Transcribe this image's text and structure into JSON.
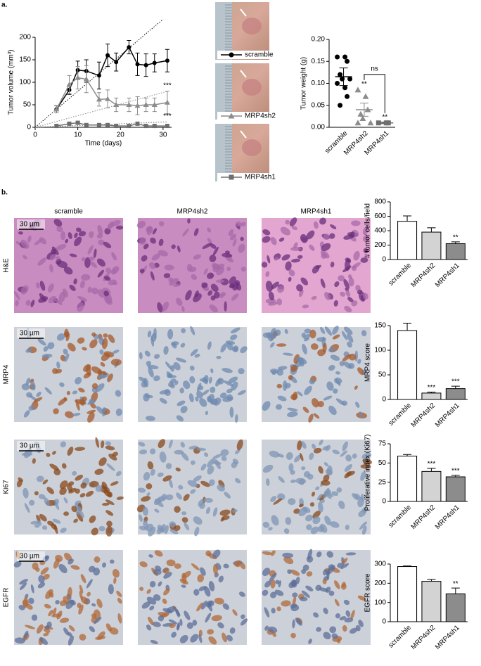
{
  "panel_labels": [
    "a.",
    "b."
  ],
  "histology": {
    "columns": [
      "scramble",
      "MRP4sh2",
      "MRP4sh1"
    ],
    "rows": [
      "H&E",
      "MRP4",
      "Ki67",
      "EGFR"
    ],
    "scale_bar": "30 µm"
  },
  "chart_data": [
    {
      "type": "line",
      "ylabel": "Tumor volume (mm³)",
      "xlabel": "Time (days)",
      "x": [
        5,
        8,
        10,
        12,
        15,
        17,
        19,
        22,
        24,
        26,
        28,
        31
      ],
      "xlim": [
        0,
        32
      ],
      "xticks": [
        0,
        10,
        20,
        30
      ],
      "ylim": [
        0,
        200
      ],
      "yticks": [
        0,
        50,
        100,
        150,
        200
      ],
      "series": [
        {
          "name": "scramble",
          "color": "#000000",
          "marker": "circle",
          "values": [
            40,
            83,
            127,
            125,
            115,
            160,
            145,
            178,
            140,
            138,
            143,
            148
          ],
          "errors": [
            8,
            10,
            20,
            25,
            30,
            25,
            20,
            15,
            25,
            25,
            20,
            25
          ],
          "trend_x": [
            0,
            30
          ],
          "trend": [
            0,
            240
          ],
          "annotation": null
        },
        {
          "name": "MRP4sh2",
          "color": "#8c8c8c",
          "marker": "triangle",
          "values": [
            40,
            95,
            110,
            107,
            62,
            63,
            50,
            50,
            48,
            50,
            50,
            55
          ],
          "errors": [
            8,
            20,
            25,
            30,
            15,
            20,
            15,
            15,
            20,
            15,
            15,
            25
          ],
          "trend_x": [
            0,
            31
          ],
          "trend": [
            0,
            80
          ],
          "annotation": "***"
        },
        {
          "name": "MRP4sh1",
          "color": "#6e6e6e",
          "marker": "square",
          "values": [
            3,
            8,
            10,
            5,
            5,
            5,
            3,
            3,
            8,
            3,
            3,
            3
          ],
          "errors": [
            2,
            3,
            3,
            2,
            2,
            2,
            2,
            2,
            3,
            2,
            2,
            2
          ],
          "trend_x": [
            0,
            31
          ],
          "trend": [
            0,
            12
          ],
          "annotation": "***"
        }
      ]
    },
    {
      "type": "scatter",
      "ylabel": "Tumor weight (g)",
      "categories": [
        "scramble",
        "MRP4sh2",
        "MRP4sh1"
      ],
      "ylim": [
        0,
        0.2
      ],
      "yticks": [
        {
          "value": 0,
          "label": "0.00"
        },
        {
          "value": 0.05,
          "label": "0.05"
        },
        {
          "value": 0.1,
          "label": "0.10"
        },
        {
          "value": 0.15,
          "label": "0.15"
        },
        {
          "value": 0.2,
          "label": "0.20"
        }
      ],
      "points": [
        [
          0.16,
          0.16,
          0.15,
          0.12,
          0.11,
          0.11,
          0.1,
          0.09,
          0.07,
          0.05
        ],
        [
          0.085,
          0.07,
          0.04,
          0.03,
          0.02,
          0.01,
          0.01
        ],
        [
          0.01,
          0.01,
          0.01
        ]
      ],
      "means": [
        0.115,
        0.04,
        0.01
      ],
      "errors": [
        0.02,
        0.015,
        0.002
      ],
      "colors": [
        "#000000",
        "#8c8c8c",
        "#6e6e6e"
      ],
      "markers": [
        "circle",
        "triangle",
        "square"
      ],
      "value_annotations": [
        null,
        "**",
        "**"
      ],
      "bracket": {
        "label": "ns",
        "categories": [
          1,
          2
        ]
      }
    },
    {
      "type": "bar",
      "ylabel": "# tumor cells/field",
      "categories": [
        "scramble",
        "MRP4sh2",
        "MRP4sh1"
      ],
      "values": [
        530,
        380,
        220
      ],
      "errors": [
        75,
        60,
        25
      ],
      "colors": [
        "#ffffff",
        "#d3d3d3",
        "#8c8c8c"
      ],
      "ylim": [
        0,
        800
      ],
      "yticks": [
        0,
        200,
        400,
        600,
        800
      ],
      "value_annotations": [
        null,
        null,
        "**"
      ]
    },
    {
      "type": "bar",
      "ylabel": "MRP4 score",
      "categories": [
        "scramble",
        "MRP4sh2",
        "MRP4sh1"
      ],
      "values": [
        140,
        13,
        22
      ],
      "errors": [
        15,
        2,
        5
      ],
      "colors": [
        "#ffffff",
        "#d3d3d3",
        "#8c8c8c"
      ],
      "ylim": [
        0,
        150
      ],
      "yticks": [
        0,
        50,
        100,
        150
      ],
      "value_annotations": [
        null,
        "***",
        "***"
      ]
    },
    {
      "type": "bar",
      "ylabel": "Proliferative index (Ki67)",
      "categories": [
        "scramble",
        "MRP4sh2",
        "MRP4sh1"
      ],
      "values": [
        59,
        39,
        32
      ],
      "errors": [
        2,
        4,
        2
      ],
      "colors": [
        "#ffffff",
        "#d3d3d3",
        "#8c8c8c"
      ],
      "ylim": [
        0,
        75
      ],
      "yticks": [
        0,
        25,
        50,
        75
      ],
      "value_annotations": [
        null,
        "***",
        "***"
      ]
    },
    {
      "type": "bar",
      "ylabel": "EGFR score",
      "categories": [
        "scramble",
        "MRP4sh2",
        "MRP4sh1"
      ],
      "values": [
        287,
        210,
        145
      ],
      "errors": [
        3,
        10,
        30
      ],
      "colors": [
        "#ffffff",
        "#d3d3d3",
        "#8c8c8c"
      ],
      "ylim": [
        0,
        300
      ],
      "yticks": [
        0,
        100,
        200,
        300
      ],
      "value_annotations": [
        null,
        null,
        "**"
      ]
    }
  ]
}
